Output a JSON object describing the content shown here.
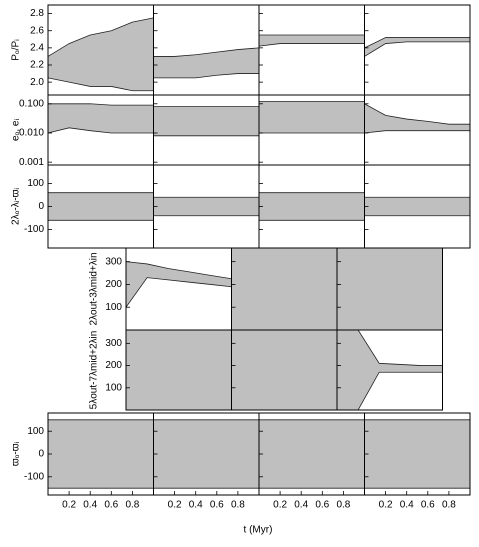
{
  "chart_data": [
    {
      "type": "band",
      "ylabel": "Pₒ/Pᵢ",
      "xlim": [
        0,
        1
      ],
      "ylim": [
        1.85,
        2.9
      ],
      "yticks": [
        {
          "value": 2,
          "label": "2.0"
        },
        2.2,
        2.4,
        2.6,
        2.8
      ],
      "x": [
        0,
        0.2,
        0.4,
        0.6,
        0.8,
        1
      ],
      "panels": [
        {
          "lower": [
            2.05,
            2.0,
            1.95,
            1.95,
            1.9,
            1.9
          ],
          "upper": [
            2.3,
            2.45,
            2.55,
            2.6,
            2.7,
            2.75
          ]
        },
        {
          "lower": [
            2.05,
            2.05,
            2.05,
            2.08,
            2.1,
            2.1
          ],
          "upper": [
            2.3,
            2.3,
            2.32,
            2.35,
            2.38,
            2.4
          ]
        },
        {
          "lower": [
            2.42,
            2.45,
            2.45,
            2.45,
            2.45,
            2.45
          ],
          "upper": [
            2.55,
            2.55,
            2.55,
            2.55,
            2.55,
            2.55
          ]
        },
        {
          "lower": [
            2.3,
            2.45,
            2.47,
            2.47,
            2.47,
            2.47
          ],
          "upper": [
            2.4,
            2.52,
            2.52,
            2.52,
            2.52,
            2.52
          ]
        }
      ]
    },
    {
      "type": "band",
      "ylabel": "eₒ, eᵢ",
      "log_scale": true,
      "xlim": [
        0,
        1
      ],
      "ylim": [
        0.0008,
        0.2
      ],
      "yticks": [
        0.001,
        {
          "value": 0.01,
          "label": "0.010"
        },
        {
          "value": 0.1,
          "label": "0.100"
        }
      ],
      "x": [
        0,
        0.2,
        0.4,
        0.6,
        0.8,
        1
      ],
      "panels": [
        {
          "lower": [
            0.01,
            0.015,
            0.012,
            0.01,
            0.01,
            0.01
          ],
          "upper": [
            0.1,
            0.1,
            0.1,
            0.09,
            0.09,
            0.09
          ]
        },
        {
          "lower": [
            0.008,
            0.008,
            0.008,
            0.008,
            0.008,
            0.008
          ],
          "upper": [
            0.08,
            0.08,
            0.08,
            0.08,
            0.08,
            0.08
          ]
        },
        {
          "lower": [
            0.01,
            0.01,
            0.01,
            0.01,
            0.01,
            0.01
          ],
          "upper": [
            0.12,
            0.12,
            0.12,
            0.12,
            0.12,
            0.12
          ]
        },
        {
          "lower": [
            0.01,
            0.012,
            0.012,
            0.012,
            0.012,
            0.012
          ],
          "upper": [
            0.1,
            0.04,
            0.03,
            0.025,
            0.02,
            0.02
          ]
        }
      ]
    },
    {
      "type": "band",
      "ylabel": "2λₒ-λᵢ-ϖᵢ",
      "xlim": [
        0,
        1
      ],
      "ylim": [
        -180,
        180
      ],
      "yticks": [
        -100,
        0,
        100
      ],
      "x": [
        0,
        0.2,
        0.4,
        0.6,
        0.8,
        1
      ],
      "panels": [
        {
          "lower": [
            -60,
            -60,
            -60,
            -60,
            -60,
            -60
          ],
          "upper": [
            60,
            60,
            60,
            60,
            60,
            60
          ]
        },
        {
          "lower": [
            -40,
            -40,
            -40,
            -40,
            -40,
            -40
          ],
          "upper": [
            40,
            40,
            40,
            40,
            40,
            40
          ]
        },
        {
          "lower": [
            -60,
            -60,
            -60,
            -60,
            -60,
            -60
          ],
          "upper": [
            60,
            60,
            60,
            60,
            60,
            60
          ]
        },
        {
          "lower": [
            -40,
            -40,
            -40,
            -40,
            -40,
            -40
          ],
          "upper": [
            40,
            40,
            40,
            40,
            40,
            40
          ]
        }
      ]
    },
    {
      "type": "band",
      "ylabel": "2λout-3λmid+λin",
      "xlim": [
        0,
        1
      ],
      "ylim": [
        0,
        360
      ],
      "yticks": [
        100,
        200,
        300
      ],
      "x": [
        0,
        0.2,
        0.4,
        0.6,
        0.8,
        1
      ],
      "panels": [
        {
          "lower": [
            100,
            230,
            220,
            210,
            200,
            190
          ],
          "upper": [
            300,
            290,
            270,
            255,
            240,
            225
          ]
        },
        {
          "lower": [
            0,
            0,
            0,
            0,
            0,
            0
          ],
          "upper": [
            360,
            360,
            360,
            360,
            360,
            360
          ]
        },
        {
          "lower": [
            0,
            0,
            0,
            0,
            0,
            0
          ],
          "upper": [
            360,
            360,
            360,
            360,
            360,
            360
          ]
        }
      ]
    },
    {
      "type": "band",
      "ylabel": "5λout-7λmid+2λin",
      "xlim": [
        0,
        1
      ],
      "ylim": [
        0,
        360
      ],
      "yticks": [
        100,
        200,
        300
      ],
      "x": [
        0,
        0.2,
        0.4,
        0.6,
        0.8,
        1
      ],
      "panels": [
        {
          "lower": [
            0,
            0,
            0,
            0,
            0,
            0
          ],
          "upper": [
            360,
            360,
            360,
            360,
            360,
            360
          ]
        },
        {
          "lower": [
            0,
            0,
            0,
            0,
            0,
            0
          ],
          "upper": [
            360,
            360,
            360,
            360,
            360,
            360
          ]
        },
        {
          "lower": [
            0,
            0,
            170,
            170,
            170,
            170
          ],
          "upper": [
            360,
            360,
            210,
            205,
            200,
            200
          ]
        }
      ]
    },
    {
      "type": "band",
      "ylabel": "ϖₒ-ϖᵢ",
      "xlabel": "t (Myr)",
      "xlim": [
        0,
        1
      ],
      "ylim": [
        -180,
        180
      ],
      "yticks": [
        -100,
        0,
        100
      ],
      "xticks": [
        0.2,
        0.4,
        0.6,
        0.8
      ],
      "x": [
        0,
        0.2,
        0.4,
        0.6,
        0.8,
        1
      ],
      "panels": [
        {
          "lower": [
            -150,
            -150,
            -150,
            -150,
            -150,
            -150
          ],
          "upper": [
            150,
            150,
            150,
            150,
            150,
            150
          ]
        },
        {
          "lower": [
            -150,
            -150,
            -150,
            -150,
            -150,
            -150
          ],
          "upper": [
            150,
            150,
            150,
            150,
            150,
            150
          ]
        },
        {
          "lower": [
            -150,
            -150,
            -150,
            -150,
            -150,
            -150
          ],
          "upper": [
            150,
            150,
            150,
            150,
            150,
            150
          ]
        },
        {
          "lower": [
            -150,
            -150,
            -150,
            -150,
            -150,
            -150
          ],
          "upper": [
            150,
            150,
            150,
            150,
            150,
            150
          ]
        }
      ]
    }
  ]
}
